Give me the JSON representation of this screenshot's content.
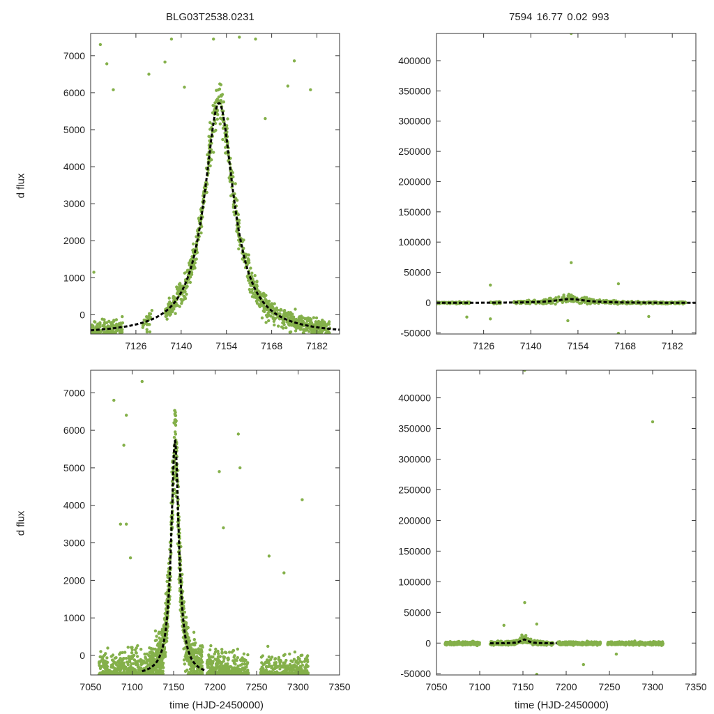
{
  "figure": {
    "title_left": "BLG03T2538.0231",
    "title_right": "7594   16.77   0.02   993",
    "ylabel": "d flux",
    "xlabel": "time (HJD-2450000)",
    "point_color": "#84b04a",
    "fit_color": "#000000"
  },
  "chart_data": [
    {
      "name": "top-left",
      "type": "scatter",
      "xlim": [
        7112,
        7189
      ],
      "ylim": [
        -520,
        7600
      ],
      "xticks": [
        7126,
        7140,
        7154,
        7168,
        7182
      ],
      "yticks": [
        0,
        1000,
        2000,
        3000,
        4000,
        5000,
        6000,
        7000
      ],
      "model": {
        "t0": 7151.7,
        "tE": 7.0,
        "peak": 5720,
        "base": -540
      },
      "noise": [
        160,
        500
      ],
      "segments": [
        [
          7112,
          7122,
          150
        ],
        [
          7128,
          7131,
          30
        ],
        [
          7135,
          7186,
          900
        ]
      ],
      "outliers": [
        [
          7115,
          7300
        ],
        [
          7117,
          6780
        ],
        [
          7119,
          6080
        ],
        [
          7130,
          6500
        ],
        [
          7135,
          6830
        ],
        [
          7137,
          7450
        ],
        [
          7141,
          6150
        ],
        [
          7150,
          7450
        ],
        [
          7158,
          7500
        ],
        [
          7163,
          7450
        ],
        [
          7166,
          5300
        ],
        [
          7173,
          6180
        ],
        [
          7175,
          6860
        ],
        [
          7180,
          6080
        ],
        [
          7113,
          1150
        ]
      ]
    },
    {
      "name": "top-right",
      "type": "scatter",
      "xlim": [
        7112,
        7189
      ],
      "ylim": [
        -52000,
        445000
      ],
      "xticks": [
        7126,
        7140,
        7154,
        7168,
        7182
      ],
      "yticks": [
        -50000,
        0,
        50000,
        100000,
        150000,
        200000,
        250000,
        300000,
        350000,
        400000
      ],
      "model": {
        "t0": 7151.7,
        "tE": 7.0,
        "peak": 5720,
        "base": -540
      },
      "noise": [
        1200,
        4500
      ],
      "segments": [
        [
          7112,
          7122,
          80
        ],
        [
          7128,
          7131,
          20
        ],
        [
          7135,
          7186,
          550
        ]
      ],
      "outliers": [
        [
          7152,
          445000
        ],
        [
          7152,
          66000
        ],
        [
          7128,
          29000
        ],
        [
          7128,
          -27000
        ],
        [
          7166,
          31000
        ],
        [
          7166,
          -51000
        ],
        [
          7151,
          -30000
        ],
        [
          7121,
          -24000
        ],
        [
          7175,
          -23000
        ]
      ]
    },
    {
      "name": "bottom-left",
      "type": "scatter",
      "xlim": [
        7050,
        7350
      ],
      "ylim": [
        -520,
        7600
      ],
      "xticks": [
        7050,
        7100,
        7150,
        7200,
        7250,
        7300,
        7350
      ],
      "yticks": [
        0,
        1000,
        2000,
        3000,
        4000,
        5000,
        6000,
        7000
      ],
      "model": {
        "t0": 7151.7,
        "tE": 7.0,
        "peak": 5720,
        "base": -540
      },
      "fit_range": [
        7112,
        7189
      ],
      "noise": [
        400,
        900
      ],
      "segments": [
        [
          7060,
          7122,
          500
        ],
        [
          7122,
          7185,
          900
        ],
        [
          7190,
          7240,
          500
        ],
        [
          7255,
          7312,
          400
        ]
      ],
      "outliers": [
        [
          7078,
          6800
        ],
        [
          7093,
          6400
        ],
        [
          7090,
          5600
        ],
        [
          7112,
          7300
        ],
        [
          7086,
          3500
        ],
        [
          7093,
          3500
        ],
        [
          7098,
          2600
        ],
        [
          7205,
          4900
        ],
        [
          7210,
          3400
        ],
        [
          7228,
          5900
        ],
        [
          7230,
          5000
        ],
        [
          7283,
          2200
        ],
        [
          7305,
          4150
        ],
        [
          7265,
          2650
        ]
      ]
    },
    {
      "name": "bottom-right",
      "type": "scatter",
      "xlim": [
        7050,
        7350
      ],
      "ylim": [
        -52000,
        445000
      ],
      "xticks": [
        7050,
        7100,
        7150,
        7200,
        7250,
        7300,
        7350
      ],
      "yticks": [
        -50000,
        0,
        50000,
        100000,
        150000,
        200000,
        250000,
        300000,
        350000,
        400000
      ],
      "model": {
        "t0": 7151.7,
        "tE": 7.0,
        "peak": 5720,
        "base": -540
      },
      "fit_range": [
        7112,
        7189
      ],
      "noise": [
        1800,
        4500
      ],
      "segments": [
        [
          7060,
          7100,
          300
        ],
        [
          7112,
          7185,
          600
        ],
        [
          7190,
          7240,
          350
        ],
        [
          7248,
          7312,
          350
        ]
      ],
      "outliers": [
        [
          7152,
          445000
        ],
        [
          7300,
          361000
        ],
        [
          7152,
          66000
        ],
        [
          7128,
          29000
        ],
        [
          7166,
          31000
        ],
        [
          7166,
          -51000
        ],
        [
          7220,
          -35000
        ],
        [
          7258,
          -18000
        ]
      ]
    }
  ]
}
